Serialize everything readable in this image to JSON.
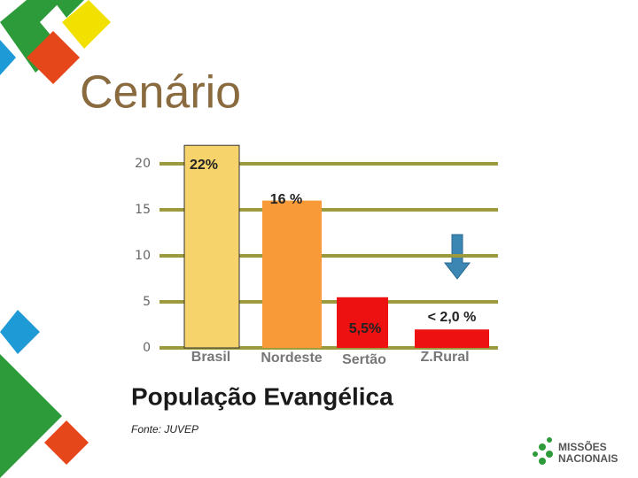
{
  "slide_title": "Cenário",
  "logo": [
    "MISSÕES",
    "NACIONAIS"
  ],
  "chart_data": {
    "type": "bar",
    "title": "População Evangélica",
    "source": "Fonte: JUVEP",
    "categories": [
      "Brasil",
      "Nordeste",
      "Sertão",
      "Z.Rural"
    ],
    "values": [
      22,
      16,
      5.5,
      2
    ],
    "value_labels": [
      "22%",
      "16 %",
      "5,5%",
      "< 2,0 %"
    ],
    "colors": [
      "#f7d36c",
      "#f99a38",
      "#ee1111",
      "#ee1111"
    ],
    "ylim": [
      0,
      22
    ],
    "yticks": [
      0,
      5,
      10,
      15,
      20
    ],
    "grid": true,
    "grid_color": "#9c9a3c"
  }
}
